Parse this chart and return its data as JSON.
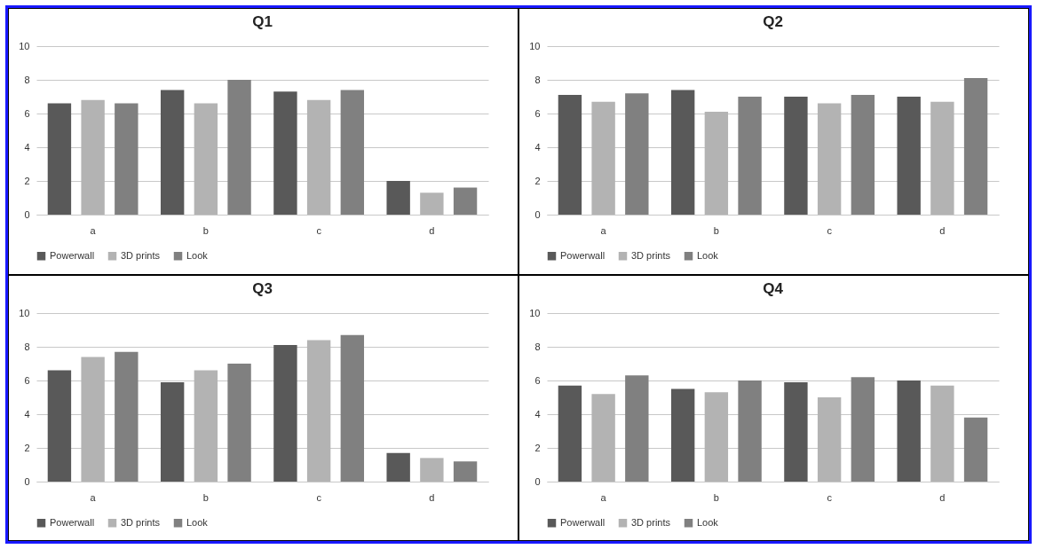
{
  "chart_data": [
    {
      "type": "bar",
      "title": "Q1",
      "categories": [
        "a",
        "b",
        "c",
        "d"
      ],
      "series": [
        {
          "name": "Powerwall",
          "color": "#595959",
          "values": [
            6.6,
            7.4,
            7.3,
            2.0
          ]
        },
        {
          "name": "3D prints",
          "color": "#b3b3b3",
          "values": [
            6.8,
            6.6,
            6.8,
            1.3
          ]
        },
        {
          "name": "Look",
          "color": "#808080",
          "values": [
            6.6,
            8.0,
            7.4,
            1.6
          ]
        }
      ],
      "ylim": [
        0,
        10
      ],
      "yticks": [
        0,
        2,
        4,
        6,
        8,
        10
      ],
      "grid": "y",
      "legend": "bottom"
    },
    {
      "type": "bar",
      "title": "Q2",
      "categories": [
        "a",
        "b",
        "c",
        "d"
      ],
      "series": [
        {
          "name": "Powerwall",
          "color": "#595959",
          "values": [
            7.1,
            7.4,
            7.0,
            7.0
          ]
        },
        {
          "name": "3D prints",
          "color": "#b3b3b3",
          "values": [
            6.7,
            6.1,
            6.6,
            6.7
          ]
        },
        {
          "name": "Look",
          "color": "#808080",
          "values": [
            7.2,
            7.0,
            7.1,
            8.1
          ]
        }
      ],
      "ylim": [
        0,
        10
      ],
      "yticks": [
        0,
        2,
        4,
        6,
        8,
        10
      ],
      "grid": "y",
      "legend": "bottom"
    },
    {
      "type": "bar",
      "title": "Q3",
      "categories": [
        "a",
        "b",
        "c",
        "d"
      ],
      "series": [
        {
          "name": "Powerwall",
          "color": "#595959",
          "values": [
            6.6,
            5.9,
            8.1,
            1.7
          ]
        },
        {
          "name": "3D prints",
          "color": "#b3b3b3",
          "values": [
            7.4,
            6.6,
            8.4,
            1.4
          ]
        },
        {
          "name": "Look",
          "color": "#808080",
          "values": [
            7.7,
            7.0,
            8.7,
            1.2
          ]
        }
      ],
      "ylim": [
        0,
        10
      ],
      "yticks": [
        0,
        2,
        4,
        6,
        8,
        10
      ],
      "grid": "y",
      "legend": "bottom"
    },
    {
      "type": "bar",
      "title": "Q4",
      "categories": [
        "a",
        "b",
        "c",
        "d"
      ],
      "series": [
        {
          "name": "Powerwall",
          "color": "#595959",
          "values": [
            5.7,
            5.5,
            5.9,
            6.0
          ]
        },
        {
          "name": "3D prints",
          "color": "#b3b3b3",
          "values": [
            5.2,
            5.3,
            5.0,
            5.7
          ]
        },
        {
          "name": "Look",
          "color": "#808080",
          "values": [
            6.3,
            6.0,
            6.2,
            3.8
          ]
        }
      ],
      "ylim": [
        0,
        10
      ],
      "yticks": [
        0,
        2,
        4,
        6,
        8,
        10
      ],
      "grid": "y",
      "legend": "bottom"
    }
  ]
}
